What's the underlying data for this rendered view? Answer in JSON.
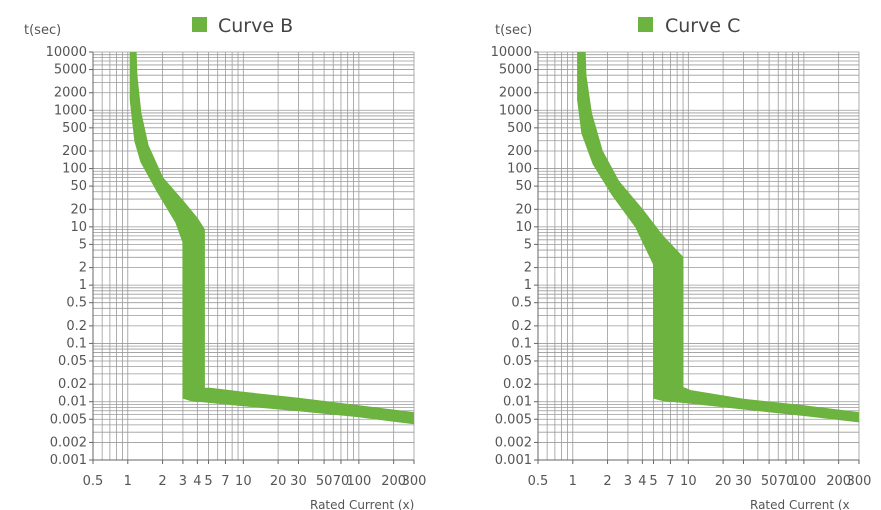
{
  "chart_data": [
    {
      "type": "area",
      "title": "Curve B",
      "ylabel": "t(sec)",
      "xlabel": "Rated Current (x)",
      "x_scale": "log",
      "y_scale": "log",
      "xlim": [
        0.5,
        300
      ],
      "ylim": [
        0.001,
        10000
      ],
      "grid": true,
      "legend": "top",
      "band_color": "#6cb33f",
      "x_ticks": [
        "0.5",
        "1",
        "2",
        "3",
        "4",
        "5",
        "7",
        "10",
        "20",
        "30",
        "50",
        "70",
        "100",
        "200",
        "300"
      ],
      "x_tick_values": [
        0.5,
        1,
        2,
        3,
        4,
        5,
        7,
        10,
        20,
        30,
        50,
        70,
        100,
        200,
        300
      ],
      "y_ticks": [
        "10000",
        "5000",
        "2000",
        "1000",
        "500",
        "200",
        "100",
        "50",
        "20",
        "10",
        "5",
        "2",
        "1",
        "0.5",
        "0.2",
        "0.1",
        "0.05",
        "0.02",
        "0.01",
        "0.005",
        "0.002",
        "0.001"
      ],
      "y_tick_values": [
        10000,
        5000,
        2000,
        1000,
        500,
        200,
        100,
        50,
        20,
        10,
        5,
        2,
        1,
        0.5,
        0.2,
        0.1,
        0.05,
        0.02,
        0.01,
        0.005,
        0.002,
        0.001
      ],
      "band": {
        "upper": [
          [
            1.18,
            10000
          ],
          [
            1.2,
            4000
          ],
          [
            1.3,
            900
          ],
          [
            1.5,
            250
          ],
          [
            2.0,
            70
          ],
          [
            3.0,
            28
          ],
          [
            4.0,
            14
          ],
          [
            4.6,
            9
          ],
          [
            4.6,
            0.017
          ],
          [
            5.2,
            0.017
          ],
          [
            10,
            0.0145
          ],
          [
            30,
            0.0115
          ],
          [
            100,
            0.0085
          ],
          [
            300,
            0.0065
          ]
        ],
        "lower": [
          [
            1.05,
            10000
          ],
          [
            1.05,
            1500
          ],
          [
            1.15,
            300
          ],
          [
            1.3,
            130
          ],
          [
            1.8,
            40
          ],
          [
            2.6,
            12
          ],
          [
            3.0,
            5.5
          ],
          [
            3.0,
            0.0115
          ],
          [
            3.5,
            0.0105
          ],
          [
            10,
            0.0085
          ],
          [
            30,
            0.007
          ],
          [
            100,
            0.0055
          ],
          [
            300,
            0.0042
          ]
        ]
      }
    },
    {
      "type": "area",
      "title": "Curve C",
      "ylabel": "t(sec)",
      "xlabel": "Rated Current (x",
      "x_scale": "log",
      "y_scale": "log",
      "xlim": [
        0.5,
        300
      ],
      "ylim": [
        0.001,
        10000
      ],
      "grid": true,
      "legend": "top",
      "band_color": "#6cb33f",
      "x_ticks": [
        "0.5",
        "1",
        "2",
        "3",
        "4",
        "5",
        "7",
        "10",
        "20",
        "30",
        "50",
        "70",
        "100",
        "200",
        "300"
      ],
      "x_tick_values": [
        0.5,
        1,
        2,
        3,
        4,
        5,
        7,
        10,
        20,
        30,
        50,
        70,
        100,
        200,
        300
      ],
      "y_ticks": [
        "10000",
        "5000",
        "2000",
        "1000",
        "500",
        "200",
        "100",
        "50",
        "20",
        "10",
        "5",
        "2",
        "1",
        "0.5",
        "0.2",
        "0.1",
        "0.05",
        "0.02",
        "0.01",
        "0.005",
        "0.002",
        "0.001"
      ],
      "y_tick_values": [
        10000,
        5000,
        2000,
        1000,
        500,
        200,
        100,
        50,
        20,
        10,
        5,
        2,
        1,
        0.5,
        0.2,
        0.1,
        0.05,
        0.02,
        0.01,
        0.005,
        0.002,
        0.001
      ],
      "band": {
        "upper": [
          [
            1.28,
            10000
          ],
          [
            1.3,
            4000
          ],
          [
            1.45,
            900
          ],
          [
            1.8,
            200
          ],
          [
            2.5,
            60
          ],
          [
            4.0,
            20
          ],
          [
            6.0,
            7
          ],
          [
            9.0,
            3
          ],
          [
            9.0,
            0.0175
          ],
          [
            10.5,
            0.0155
          ],
          [
            30,
            0.011
          ],
          [
            100,
            0.0085
          ],
          [
            300,
            0.0065
          ]
        ],
        "lower": [
          [
            1.1,
            10000
          ],
          [
            1.1,
            1500
          ],
          [
            1.2,
            400
          ],
          [
            1.5,
            120
          ],
          [
            2.2,
            35
          ],
          [
            3.5,
            10
          ],
          [
            5.0,
            2.3
          ],
          [
            5.0,
            0.0115
          ],
          [
            6.0,
            0.0105
          ],
          [
            10,
            0.0095
          ],
          [
            30,
            0.0075
          ],
          [
            100,
            0.0058
          ],
          [
            300,
            0.0045
          ]
        ]
      }
    }
  ]
}
